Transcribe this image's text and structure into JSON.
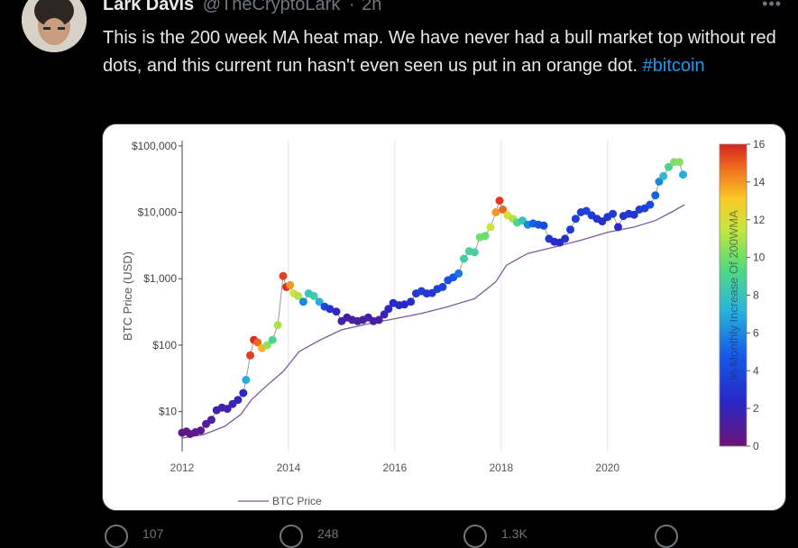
{
  "tweet": {
    "author_name": "Lark Davis",
    "author_handle": "@TheCryptoLark",
    "separator": "·",
    "time": "2h",
    "text_before": "This is the 200 week MA heat map. We have never had a bull market top without red dots, and this current run hasn't even seen us put in an orange dot.",
    "hashtag": "#bitcoin"
  },
  "colors": {
    "background": "#000000",
    "text": "#e7e9ea",
    "muted": "#71767b",
    "link": "#1d9bf0"
  },
  "chart_data": {
    "type": "scatter",
    "ylabel": "BTC Price (USD)",
    "colorbar_label": "% Monthly Increase Of 200WMA",
    "yscale": "log",
    "ylim": [
      2.5,
      120000
    ],
    "xlim": [
      2012.0,
      2021.7
    ],
    "x_ticks": [
      "2012",
      "2014",
      "2016",
      "2018",
      "2020"
    ],
    "y_ticks": [
      "$10",
      "$100",
      "$1,000",
      "$10,000",
      "$100,000"
    ],
    "colorbar_ticks": [
      "0",
      "2",
      "4",
      "6",
      "8",
      "10",
      "12",
      "14",
      "16"
    ],
    "colorbar_range": [
      0,
      16
    ],
    "legend": [
      "BTC Price"
    ],
    "legend_position": "bottom-left",
    "grid": "vertical",
    "series": [
      {
        "kind": "price_dots",
        "points": [
          [
            2012.0,
            4.8,
            0.5
          ],
          [
            2012.08,
            5.0,
            0.6
          ],
          [
            2012.15,
            4.6,
            0.5
          ],
          [
            2012.25,
            4.9,
            0.7
          ],
          [
            2012.35,
            5.2,
            0.8
          ],
          [
            2012.45,
            6.5,
            1.0
          ],
          [
            2012.55,
            7.5,
            1.2
          ],
          [
            2012.65,
            10.5,
            1.5
          ],
          [
            2012.75,
            11.5,
            1.6
          ],
          [
            2012.85,
            11,
            1.5
          ],
          [
            2012.95,
            13,
            1.8
          ],
          [
            2013.05,
            15,
            2.0
          ],
          [
            2013.15,
            19,
            2.4
          ],
          [
            2013.2,
            30,
            7.0
          ],
          [
            2013.28,
            70,
            15.5
          ],
          [
            2013.35,
            120,
            15.8
          ],
          [
            2013.42,
            110,
            14.8
          ],
          [
            2013.5,
            90,
            13.5
          ],
          [
            2013.6,
            100,
            10.5
          ],
          [
            2013.7,
            120,
            9.0
          ],
          [
            2013.8,
            200,
            11.0
          ],
          [
            2013.9,
            1100,
            15.5
          ],
          [
            2013.96,
            750,
            15.8
          ],
          [
            2014.03,
            800,
            14.0
          ],
          [
            2014.1,
            600,
            12.0
          ],
          [
            2014.18,
            550,
            11.0
          ],
          [
            2014.28,
            450,
            6.0
          ],
          [
            2014.38,
            600,
            8.0
          ],
          [
            2014.48,
            550,
            8.5
          ],
          [
            2014.58,
            450,
            7.0
          ],
          [
            2014.68,
            380,
            4.0
          ],
          [
            2014.78,
            350,
            3.0
          ],
          [
            2014.9,
            320,
            2.0
          ],
          [
            2015.0,
            230,
            1.5
          ],
          [
            2015.1,
            260,
            1.4
          ],
          [
            2015.2,
            240,
            1.3
          ],
          [
            2015.3,
            230,
            1.2
          ],
          [
            2015.4,
            240,
            1.3
          ],
          [
            2015.5,
            260,
            1.5
          ],
          [
            2015.6,
            230,
            1.2
          ],
          [
            2015.7,
            240,
            1.3
          ],
          [
            2015.8,
            290,
            1.8
          ],
          [
            2015.88,
            350,
            2.2
          ],
          [
            2015.97,
            430,
            2.5
          ],
          [
            2016.08,
            400,
            2.3
          ],
          [
            2016.18,
            410,
            2.4
          ],
          [
            2016.3,
            450,
            2.6
          ],
          [
            2016.4,
            600,
            3.2
          ],
          [
            2016.5,
            650,
            3.4
          ],
          [
            2016.6,
            600,
            3.0
          ],
          [
            2016.7,
            610,
            3.1
          ],
          [
            2016.8,
            700,
            3.5
          ],
          [
            2016.9,
            750,
            3.7
          ],
          [
            2017.0,
            950,
            4.2
          ],
          [
            2017.1,
            1050,
            4.5
          ],
          [
            2017.2,
            1200,
            5.5
          ],
          [
            2017.3,
            2000,
            8.5
          ],
          [
            2017.4,
            2600,
            9.0
          ],
          [
            2017.5,
            2500,
            8.8
          ],
          [
            2017.6,
            4200,
            10.0
          ],
          [
            2017.7,
            4400,
            9.8
          ],
          [
            2017.8,
            6000,
            11.5
          ],
          [
            2017.9,
            10000,
            14.0
          ],
          [
            2017.97,
            15000,
            15.6
          ],
          [
            2018.03,
            11000,
            14.8
          ],
          [
            2018.12,
            9000,
            12.0
          ],
          [
            2018.22,
            8000,
            11.0
          ],
          [
            2018.3,
            7000,
            9.0
          ],
          [
            2018.4,
            7500,
            8.0
          ],
          [
            2018.5,
            6500,
            6.0
          ],
          [
            2018.6,
            6800,
            5.0
          ],
          [
            2018.7,
            6500,
            4.5
          ],
          [
            2018.8,
            6300,
            4.0
          ],
          [
            2018.9,
            4000,
            3.0
          ],
          [
            2019.0,
            3600,
            2.5
          ],
          [
            2019.1,
            3500,
            2.5
          ],
          [
            2019.2,
            4000,
            2.8
          ],
          [
            2019.3,
            5500,
            3.2
          ],
          [
            2019.4,
            8000,
            3.5
          ],
          [
            2019.5,
            10000,
            3.6
          ],
          [
            2019.6,
            10500,
            3.7
          ],
          [
            2019.7,
            9000,
            3.4
          ],
          [
            2019.8,
            8000,
            3.0
          ],
          [
            2019.9,
            7300,
            2.8
          ],
          [
            2020.0,
            8500,
            3.0
          ],
          [
            2020.1,
            9500,
            3.3
          ],
          [
            2020.2,
            6000,
            2.5
          ],
          [
            2020.3,
            8800,
            3.0
          ],
          [
            2020.4,
            9500,
            3.2
          ],
          [
            2020.5,
            9200,
            3.1
          ],
          [
            2020.6,
            11000,
            3.5
          ],
          [
            2020.7,
            11500,
            3.6
          ],
          [
            2020.8,
            13000,
            4.0
          ],
          [
            2020.9,
            18000,
            5.0
          ],
          [
            2020.97,
            29000,
            6.0
          ],
          [
            2021.05,
            35000,
            7.5
          ],
          [
            2021.15,
            48000,
            9.0
          ],
          [
            2021.25,
            57000,
            10.2
          ],
          [
            2021.35,
            57000,
            10.3
          ],
          [
            2021.42,
            37000,
            7.0
          ]
        ]
      },
      {
        "kind": "ma_200w",
        "points": [
          [
            2012.0,
            4.0
          ],
          [
            2012.4,
            4.5
          ],
          [
            2012.8,
            6.0
          ],
          [
            2013.1,
            9.0
          ],
          [
            2013.3,
            15
          ],
          [
            2013.6,
            25
          ],
          [
            2013.9,
            40
          ],
          [
            2014.2,
            80
          ],
          [
            2014.6,
            120
          ],
          [
            2015.0,
            170
          ],
          [
            2015.5,
            210
          ],
          [
            2016.0,
            250
          ],
          [
            2016.5,
            300
          ],
          [
            2017.0,
            380
          ],
          [
            2017.5,
            500
          ],
          [
            2017.9,
            900
          ],
          [
            2018.1,
            1600
          ],
          [
            2018.5,
            2400
          ],
          [
            2019.0,
            3000
          ],
          [
            2019.5,
            3800
          ],
          [
            2020.0,
            5000
          ],
          [
            2020.5,
            6000
          ],
          [
            2020.9,
            7500
          ],
          [
            2021.2,
            10000
          ],
          [
            2021.45,
            13000
          ]
        ]
      }
    ]
  },
  "action_counts": [
    "107",
    "248",
    "1.3K"
  ]
}
